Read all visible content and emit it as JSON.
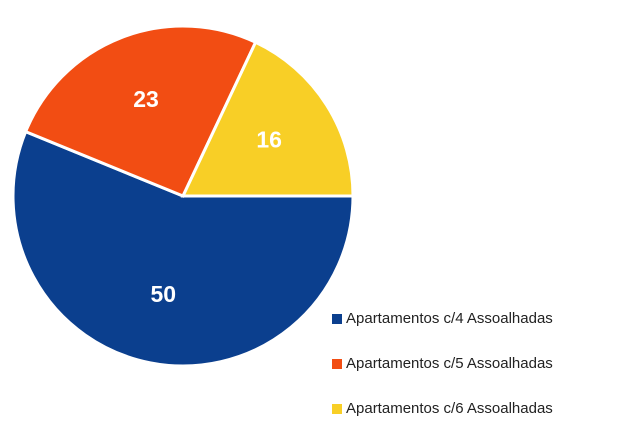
{
  "chart_data": {
    "type": "pie",
    "categories": [
      "Apartamentos c/4 Assoalhadas",
      "Apartamentos c/5 Assoalhadas",
      "Apartamentos c/6 Assoalhadas"
    ],
    "values": [
      50,
      23,
      16
    ],
    "colors": [
      "#0b3f8e",
      "#f24d13",
      "#f8cf26"
    ]
  }
}
